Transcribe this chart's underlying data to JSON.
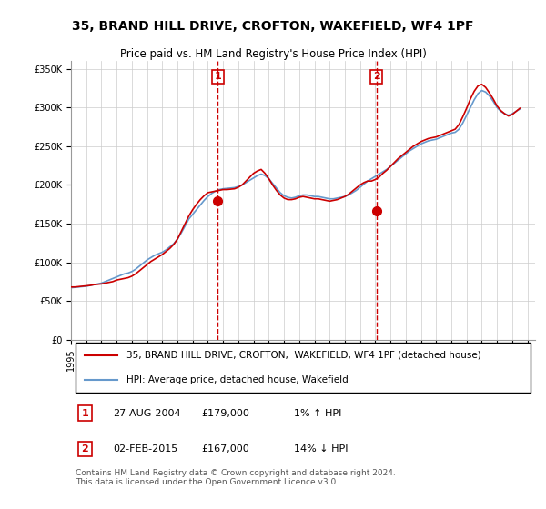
{
  "title": "35, BRAND HILL DRIVE, CROFTON, WAKEFIELD, WF4 1PF",
  "subtitle": "Price paid vs. HM Land Registry's House Price Index (HPI)",
  "ylabel_ticks": [
    "£0",
    "£50K",
    "£100K",
    "£150K",
    "£200K",
    "£250K",
    "£300K",
    "£350K"
  ],
  "ytick_values": [
    0,
    50000,
    100000,
    150000,
    200000,
    250000,
    300000,
    350000
  ],
  "ylim": [
    0,
    360000
  ],
  "xlim_start": 1995.0,
  "xlim_end": 2025.5,
  "marker1_x": 2004.65,
  "marker1_y": 179000,
  "marker1_label": "1",
  "marker2_x": 2015.08,
  "marker2_y": 167000,
  "marker2_label": "2",
  "legend_entry1": "35, BRAND HILL DRIVE, CROFTON,  WAKEFIELD, WF4 1PF (detached house)",
  "legend_entry2": "HPI: Average price, detached house, Wakefield",
  "note1_label": "1",
  "note1_date": "27-AUG-2004",
  "note1_price": "£179,000",
  "note1_hpi": "1% ↑ HPI",
  "note2_label": "2",
  "note2_date": "02-FEB-2015",
  "note2_price": "£167,000",
  "note2_hpi": "14% ↓ HPI",
  "footer": "Contains HM Land Registry data © Crown copyright and database right 2024.\nThis data is licensed under the Open Government Licence v3.0.",
  "color_price": "#cc0000",
  "color_hpi": "#6699cc",
  "background_color": "#ffffff",
  "grid_color": "#cccccc",
  "hpi_data_x": [
    1995.0,
    1995.25,
    1995.5,
    1995.75,
    1996.0,
    1996.25,
    1996.5,
    1996.75,
    1997.0,
    1997.25,
    1997.5,
    1997.75,
    1998.0,
    1998.25,
    1998.5,
    1998.75,
    1999.0,
    1999.25,
    1999.5,
    1999.75,
    2000.0,
    2000.25,
    2000.5,
    2000.75,
    2001.0,
    2001.25,
    2001.5,
    2001.75,
    2002.0,
    2002.25,
    2002.5,
    2002.75,
    2003.0,
    2003.25,
    2003.5,
    2003.75,
    2004.0,
    2004.25,
    2004.5,
    2004.75,
    2005.0,
    2005.25,
    2005.5,
    2005.75,
    2006.0,
    2006.25,
    2006.5,
    2006.75,
    2007.0,
    2007.25,
    2007.5,
    2007.75,
    2008.0,
    2008.25,
    2008.5,
    2008.75,
    2009.0,
    2009.25,
    2009.5,
    2009.75,
    2010.0,
    2010.25,
    2010.5,
    2010.75,
    2011.0,
    2011.25,
    2011.5,
    2011.75,
    2012.0,
    2012.25,
    2012.5,
    2012.75,
    2013.0,
    2013.25,
    2013.5,
    2013.75,
    2014.0,
    2014.25,
    2014.5,
    2014.75,
    2015.0,
    2015.25,
    2015.5,
    2015.75,
    2016.0,
    2016.25,
    2016.5,
    2016.75,
    2017.0,
    2017.25,
    2017.5,
    2017.75,
    2018.0,
    2018.25,
    2018.5,
    2018.75,
    2019.0,
    2019.25,
    2019.5,
    2019.75,
    2020.0,
    2020.25,
    2020.5,
    2020.75,
    2021.0,
    2021.25,
    2021.5,
    2021.75,
    2022.0,
    2022.25,
    2022.5,
    2022.75,
    2023.0,
    2023.25,
    2023.5,
    2023.75,
    2024.0,
    2024.25,
    2024.5
  ],
  "hpi_data_y": [
    67000,
    67500,
    68000,
    68500,
    69000,
    70000,
    71000,
    72000,
    73000,
    75000,
    77000,
    79000,
    81000,
    83000,
    85000,
    86000,
    88000,
    91000,
    95000,
    99000,
    103000,
    106000,
    109000,
    111000,
    113000,
    116000,
    120000,
    124000,
    130000,
    138000,
    147000,
    156000,
    162000,
    168000,
    174000,
    180000,
    185000,
    189000,
    192000,
    194000,
    195000,
    195500,
    196000,
    196500,
    198000,
    200000,
    203000,
    206000,
    209000,
    212000,
    214000,
    212000,
    208000,
    202000,
    196000,
    190000,
    186000,
    184000,
    183000,
    184000,
    186000,
    187000,
    187000,
    186000,
    185000,
    185000,
    184000,
    183000,
    182000,
    182000,
    183000,
    184000,
    185000,
    187000,
    190000,
    193000,
    197000,
    201000,
    205000,
    208000,
    211000,
    214000,
    217000,
    220000,
    224000,
    228000,
    232000,
    236000,
    240000,
    244000,
    247000,
    250000,
    253000,
    255000,
    257000,
    258000,
    259000,
    261000,
    263000,
    265000,
    267000,
    268000,
    272000,
    280000,
    290000,
    300000,
    310000,
    318000,
    322000,
    320000,
    315000,
    308000,
    300000,
    295000,
    292000,
    290000,
    292000,
    295000,
    298000
  ],
  "price_data_x": [
    1995.0,
    1995.25,
    1995.5,
    1995.75,
    1996.0,
    1996.25,
    1996.5,
    1996.75,
    1997.0,
    1997.25,
    1997.5,
    1997.75,
    1998.0,
    1998.25,
    1998.5,
    1998.75,
    1999.0,
    1999.25,
    1999.5,
    1999.75,
    2000.0,
    2000.25,
    2000.5,
    2000.75,
    2001.0,
    2001.25,
    2001.5,
    2001.75,
    2002.0,
    2002.25,
    2002.5,
    2002.75,
    2003.0,
    2003.25,
    2003.5,
    2003.75,
    2004.0,
    2004.25,
    2004.5,
    2004.75,
    2005.0,
    2005.25,
    2005.5,
    2005.75,
    2006.0,
    2006.25,
    2006.5,
    2006.75,
    2007.0,
    2007.25,
    2007.5,
    2007.75,
    2008.0,
    2008.25,
    2008.5,
    2008.75,
    2009.0,
    2009.25,
    2009.5,
    2009.75,
    2010.0,
    2010.25,
    2010.5,
    2010.75,
    2011.0,
    2011.25,
    2011.5,
    2011.75,
    2012.0,
    2012.25,
    2012.5,
    2012.75,
    2013.0,
    2013.25,
    2013.5,
    2013.75,
    2014.0,
    2014.25,
    2014.5,
    2014.75,
    2015.0,
    2015.25,
    2015.5,
    2015.75,
    2016.0,
    2016.25,
    2016.5,
    2016.75,
    2017.0,
    2017.25,
    2017.5,
    2017.75,
    2018.0,
    2018.25,
    2018.5,
    2018.75,
    2019.0,
    2019.25,
    2019.5,
    2019.75,
    2020.0,
    2020.25,
    2020.5,
    2020.75,
    2021.0,
    2021.25,
    2021.5,
    2021.75,
    2022.0,
    2022.25,
    2022.5,
    2022.75,
    2023.0,
    2023.25,
    2023.5,
    2023.75,
    2024.0,
    2024.25,
    2024.5
  ],
  "price_data_y": [
    68000,
    68000,
    68500,
    69000,
    69500,
    70000,
    71000,
    71500,
    72000,
    73000,
    74000,
    75000,
    77000,
    78000,
    79000,
    80000,
    82000,
    85000,
    89000,
    93000,
    97000,
    101000,
    104000,
    107000,
    110000,
    114000,
    118000,
    123000,
    130000,
    140000,
    150000,
    160000,
    168000,
    175000,
    181000,
    186000,
    190000,
    191000,
    192000,
    193000,
    194000,
    194000,
    194500,
    195000,
    197000,
    200000,
    205000,
    210000,
    215000,
    218000,
    220000,
    215000,
    208000,
    200000,
    193000,
    187000,
    183000,
    181000,
    181000,
    182000,
    184000,
    185000,
    184000,
    183000,
    182000,
    182000,
    181000,
    180000,
    179000,
    180000,
    181000,
    183000,
    185000,
    188000,
    192000,
    196000,
    200000,
    203000,
    205000,
    205000,
    207000,
    210000,
    215000,
    219000,
    224000,
    229000,
    234000,
    238000,
    242000,
    246000,
    250000,
    253000,
    256000,
    258000,
    260000,
    261000,
    262000,
    264000,
    266000,
    268000,
    270000,
    272000,
    278000,
    288000,
    299000,
    311000,
    321000,
    328000,
    330000,
    326000,
    319000,
    311000,
    302000,
    296000,
    292000,
    289000,
    291000,
    295000,
    299000
  ]
}
